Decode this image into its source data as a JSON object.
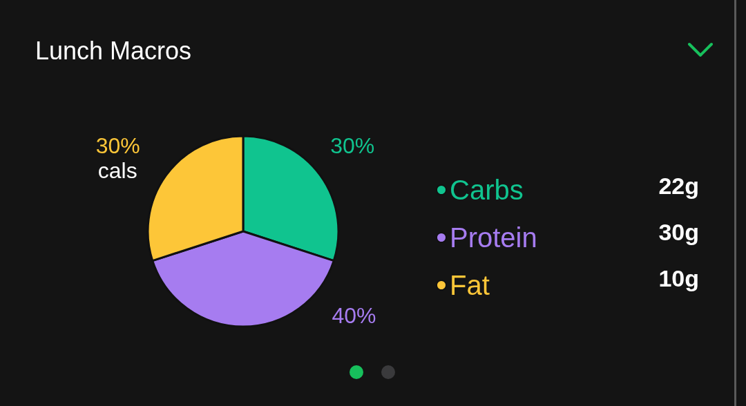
{
  "chart_data": {
    "type": "pie",
    "title": "Lunch Macros",
    "categories": [
      "Carbs",
      "Protein",
      "Fat"
    ],
    "values": [
      30,
      40,
      30
    ],
    "value_labels": [
      "30%",
      "40%",
      "30%"
    ],
    "colors": [
      "#10c48f",
      "#a67cf0",
      "#fdc638"
    ],
    "legend": "right",
    "annotations": [
      "cals",
      "22g",
      "30g",
      "10g"
    ]
  }
}
